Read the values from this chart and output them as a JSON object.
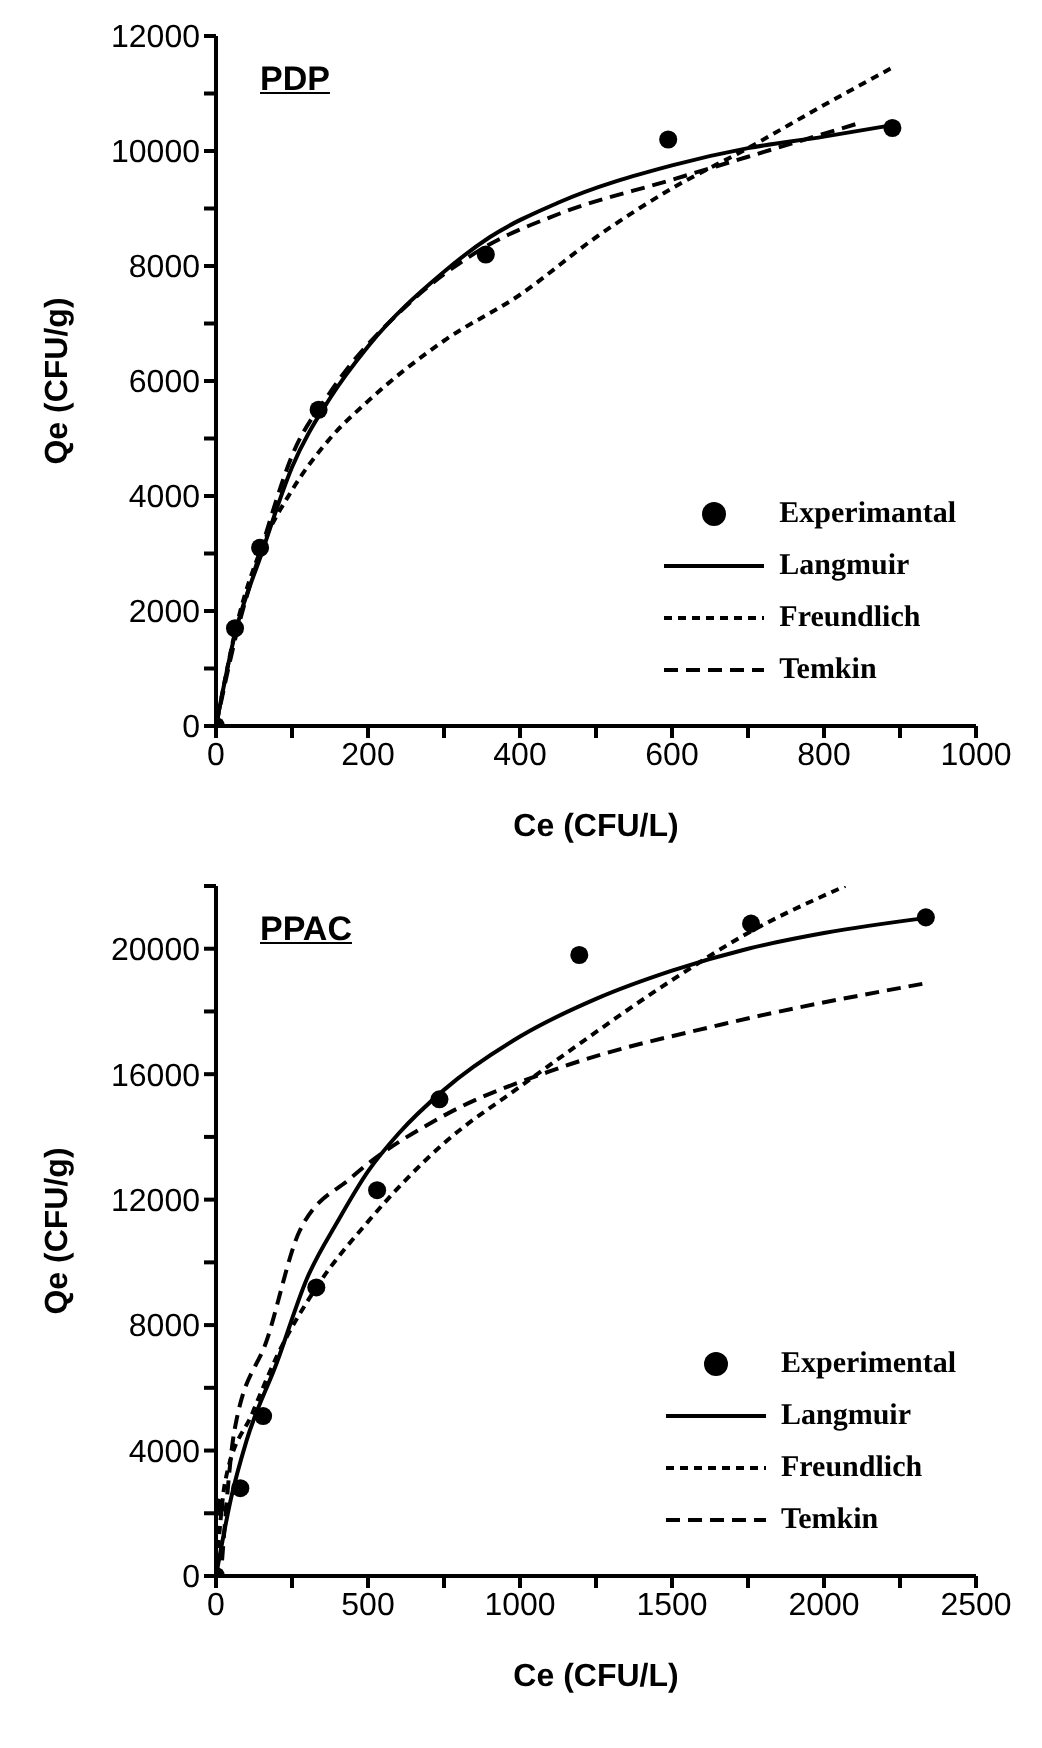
{
  "chart_data": [
    {
      "type": "scatter",
      "annotations": [
        "PDP"
      ],
      "xlabel": "Ce (CFU/L)",
      "ylabel": "Qe (CFU/g)",
      "xlim": [
        0,
        1000
      ],
      "ylim": [
        0,
        12000
      ],
      "xticks": [
        0,
        {
          "value": 100,
          "label": null
        },
        200,
        {
          "value": 300,
          "label": null
        },
        400,
        {
          "value": 500,
          "label": null
        },
        600,
        {
          "value": 700,
          "label": null
        },
        800,
        {
          "value": 900,
          "label": null
        },
        1000
      ],
      "yticks": [
        0,
        {
          "value": 1000,
          "label": null
        },
        2000,
        {
          "value": 3000,
          "label": null
        },
        4000,
        {
          "value": 5000,
          "label": null
        },
        6000,
        {
          "value": 7000,
          "label": null
        },
        8000,
        {
          "value": 9000,
          "label": null
        },
        10000,
        {
          "value": 11000,
          "label": null
        },
        12000
      ],
      "legend": "bottom right",
      "series": [
        {
          "name": "Experimantal",
          "marker": "circle",
          "color": "#000000",
          "x": [
            0,
            25,
            58,
            135,
            355,
            595,
            890
          ],
          "values": [
            0,
            1700,
            3100,
            5500,
            8200,
            10200,
            10400
          ]
        },
        {
          "name": "Langmuir",
          "type": "line",
          "line_style": "solid",
          "color": "#000000",
          "x": [
            0,
            25,
            60,
            100,
            150,
            200,
            300,
            360,
            450,
            600,
            700,
            800,
            890
          ],
          "values": [
            0,
            1600,
            3000,
            4500,
            5700,
            6600,
            7900,
            8500,
            9100,
            9750,
            10050,
            10250,
            10450
          ]
        },
        {
          "name": "Freundlich",
          "type": "line",
          "line_style": "dotted",
          "color": "#000000",
          "x": [
            0,
            30,
            60,
            100,
            150,
            200,
            300,
            400,
            500,
            600,
            700,
            800,
            890
          ],
          "values": [
            0,
            1900,
            3100,
            4100,
            5000,
            5650,
            6700,
            7500,
            8500,
            9350,
            10050,
            10800,
            11450
          ]
        },
        {
          "name": "Temkin",
          "type": "line",
          "line_style": "dashed",
          "color": "#000000",
          "x": [
            0,
            25,
            60,
            100,
            150,
            250,
            350,
            450,
            600,
            700,
            850
          ],
          "values": [
            0,
            1500,
            3100,
            4700,
            5800,
            7300,
            8300,
            8900,
            9500,
            9900,
            10500
          ]
        }
      ]
    },
    {
      "type": "scatter",
      "annotations": [
        "PPAC"
      ],
      "xlabel": "Ce (CFU/L)",
      "ylabel": "Qe (CFU/g)",
      "xlim": [
        0,
        2500
      ],
      "ylim": [
        0,
        22000
      ],
      "xticks": [
        0,
        {
          "value": 250,
          "label": null
        },
        500,
        {
          "value": 750,
          "label": null
        },
        1000,
        {
          "value": 1250,
          "label": null
        },
        1500,
        {
          "value": 1750,
          "label": null
        },
        2000,
        {
          "value": 2250,
          "label": null
        },
        2500
      ],
      "yticks": [
        0,
        {
          "value": 2000,
          "label": null
        },
        4000,
        {
          "value": 6000,
          "label": null
        },
        8000,
        {
          "value": 10000,
          "label": null
        },
        12000,
        {
          "value": 14000,
          "label": null
        },
        16000,
        {
          "value": 18000,
          "label": null
        },
        20000,
        {
          "value": 22000,
          "label": null
        }
      ],
      "legend": "bottom right",
      "series": [
        {
          "name": "Experimental",
          "marker": "circle",
          "color": "#000000",
          "x": [
            0,
            0,
            80,
            155,
            330,
            530,
            735,
            1195,
            1760,
            2335
          ],
          "values": [
            0,
            2200,
            2800,
            5100,
            9200,
            12300,
            15200,
            19800,
            20800,
            21000
          ]
        },
        {
          "name": "Langmuir",
          "type": "line",
          "line_style": "solid",
          "color": "#000000",
          "x": [
            0,
            50,
            100,
            200,
            300,
            400,
            500,
            600,
            750,
            1000,
            1250,
            1500,
            1750,
            2000,
            2350
          ],
          "values": [
            0,
            2500,
            4300,
            6800,
            9500,
            11300,
            12900,
            14100,
            15500,
            17200,
            18400,
            19300,
            20000,
            20500,
            21000
          ]
        },
        {
          "name": "Freundlich",
          "type": "line",
          "line_style": "dotted",
          "color": "#000000",
          "x": [
            0,
            30,
            120,
            200,
            330,
            500,
            750,
            1000,
            1200,
            1500,
            1750,
            2070
          ],
          "values": [
            0,
            3000,
            5200,
            7000,
            9200,
            11300,
            13800,
            15600,
            17000,
            19000,
            20500,
            22000
          ]
        },
        {
          "name": "Temkin",
          "type": "line",
          "line_style": "dashed",
          "color": "#000000",
          "x": [
            20,
            60,
            170,
            275,
            445,
            735,
            1130,
            1670,
            2335
          ],
          "values": [
            500,
            4600,
            7600,
            11000,
            12700,
            14600,
            16200,
            17600,
            18900
          ]
        }
      ]
    }
  ]
}
